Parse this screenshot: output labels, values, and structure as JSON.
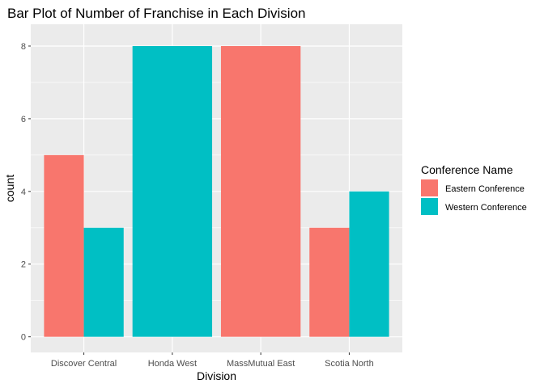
{
  "chart_data": {
    "type": "bar",
    "title": "Bar Plot of Number of Franchise in Each Division",
    "xlabel": "Division",
    "ylabel": "count",
    "categories": [
      "Discover Central",
      "Honda West",
      "MassMutual East",
      "Scotia North"
    ],
    "series": [
      {
        "name": "Eastern Conference",
        "color": "#F8766D",
        "values": [
          5,
          0,
          8,
          3
        ]
      },
      {
        "name": "Western Conference",
        "color": "#00BFC4",
        "values": [
          3,
          8,
          0,
          4
        ]
      }
    ],
    "ylim": [
      0,
      8.6
    ],
    "yticks": [
      0,
      2,
      4,
      6,
      8
    ],
    "grid": true,
    "legend": {
      "title": "Conference Name",
      "position": "right"
    },
    "panel_background": "#EBEBEB"
  }
}
